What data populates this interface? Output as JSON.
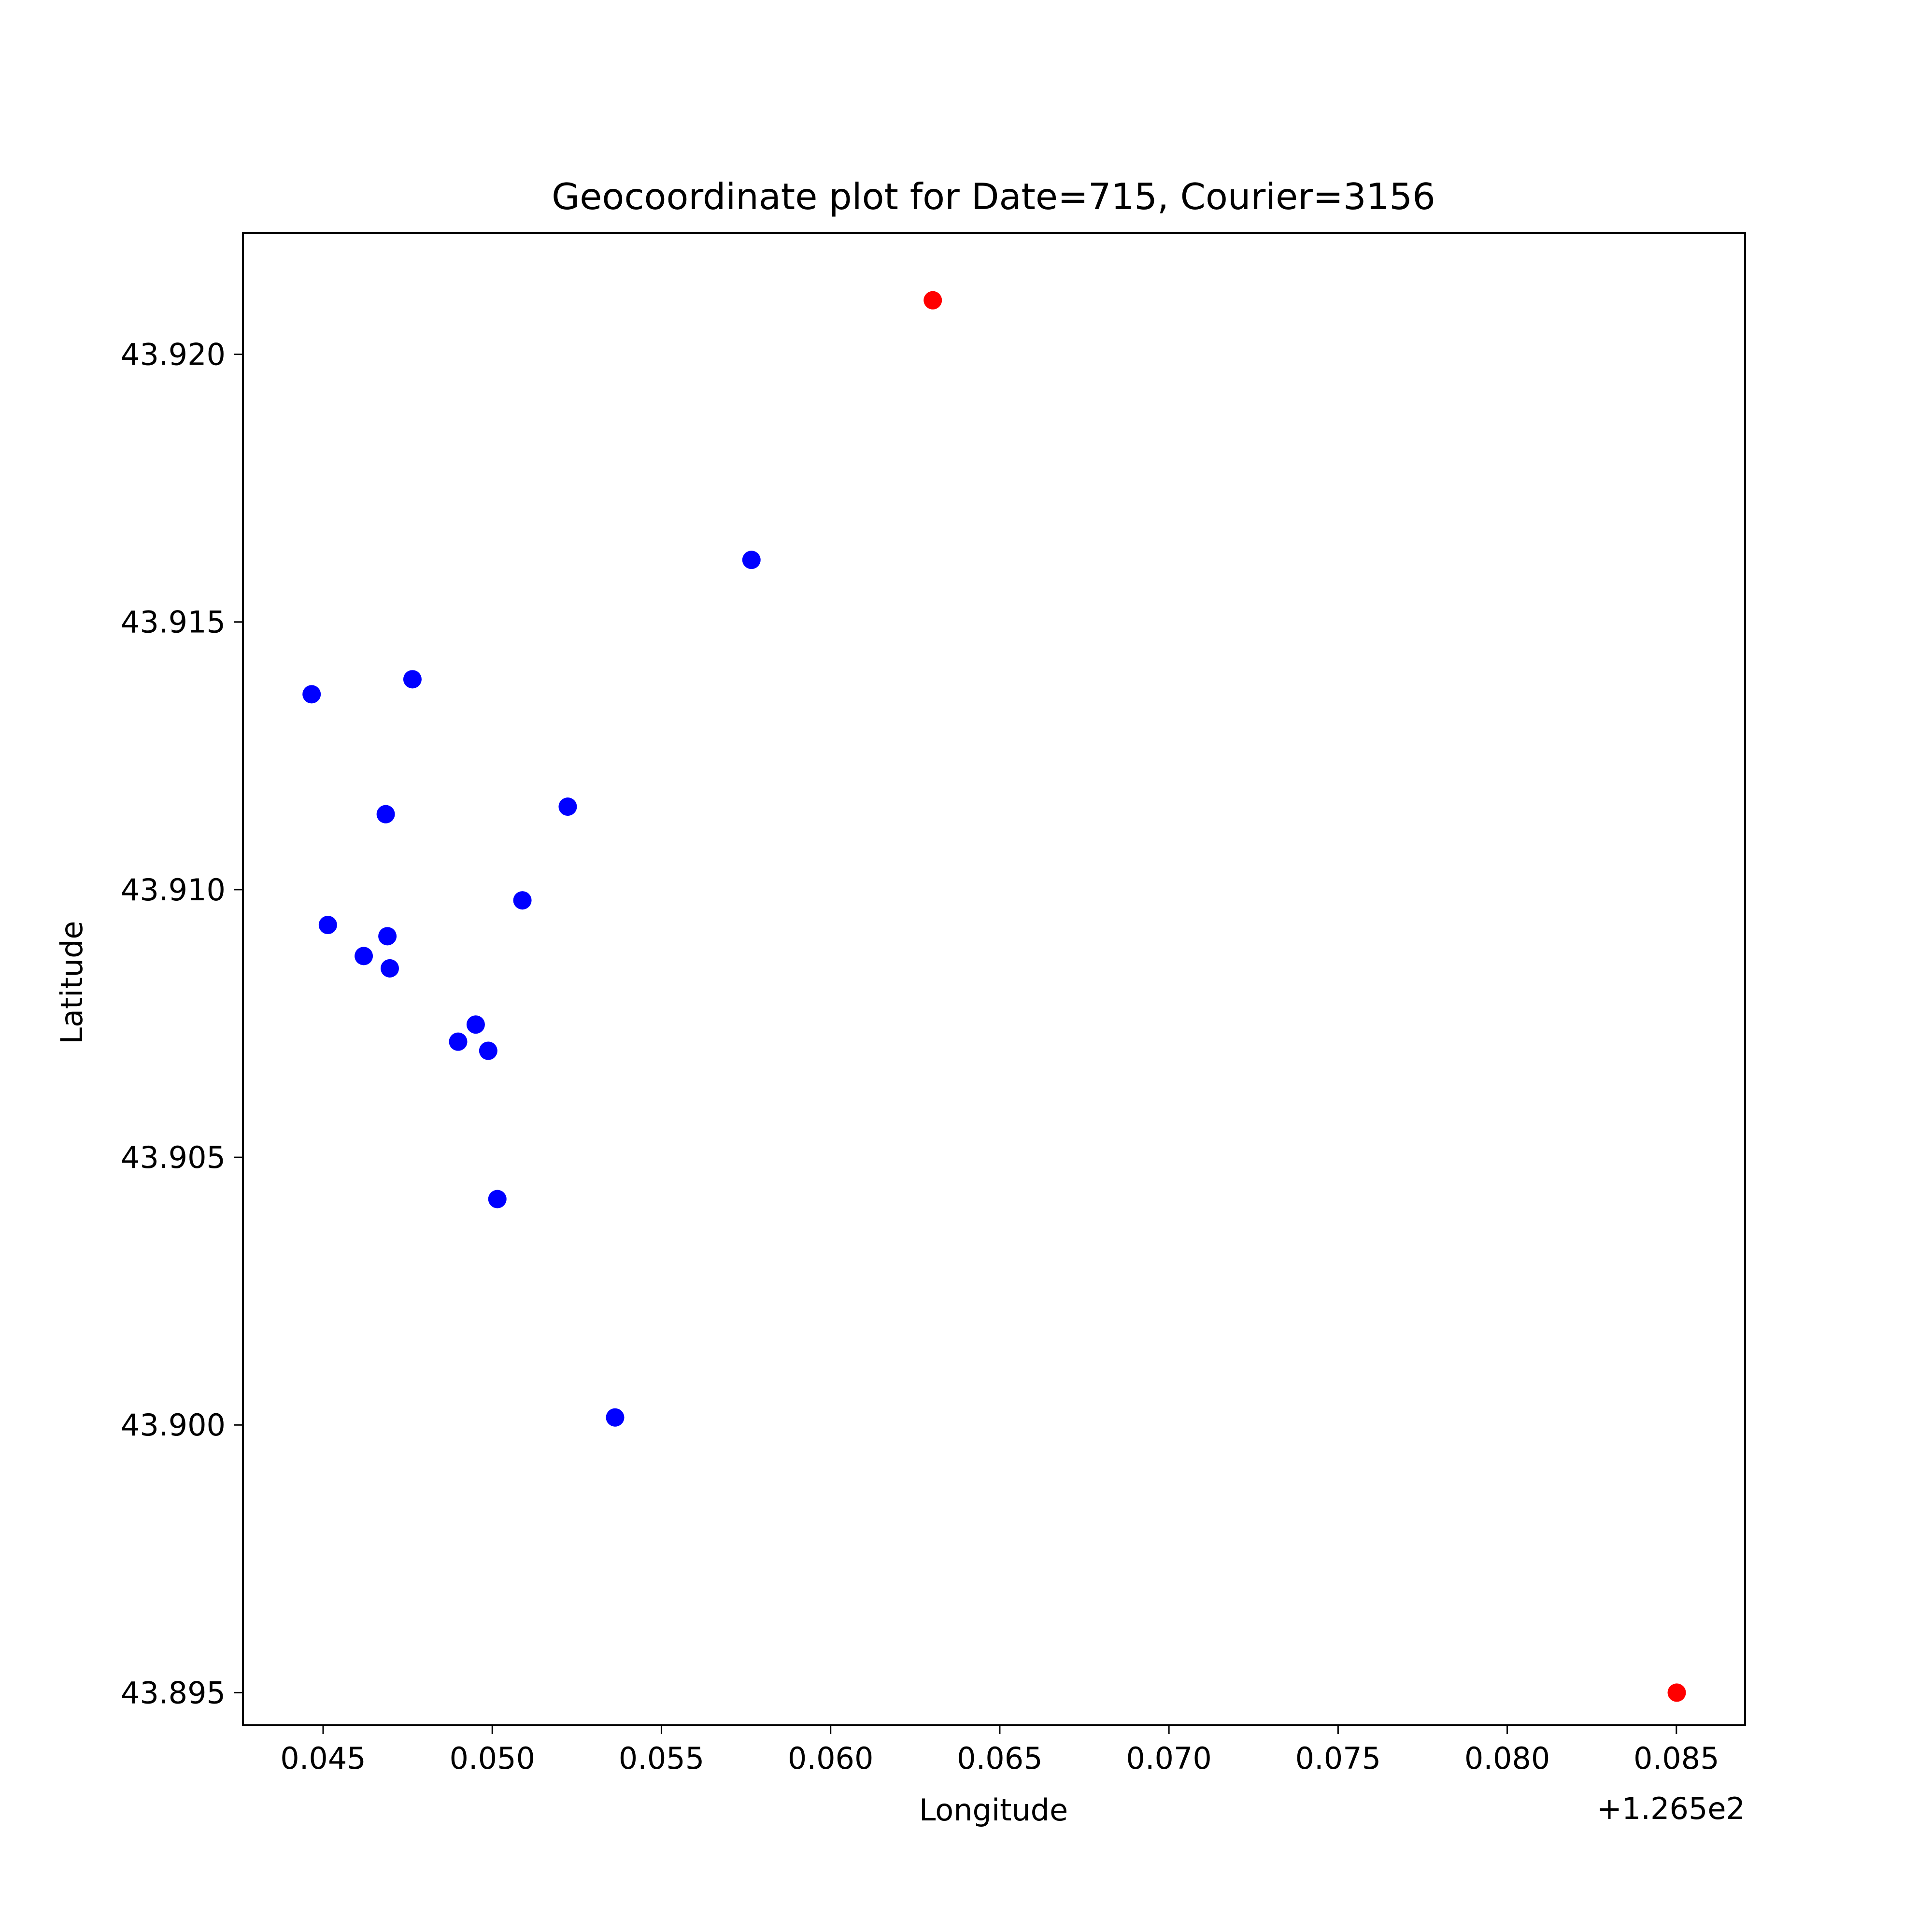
{
  "chart_data": {
    "type": "scatter",
    "title": "Geocoordinate plot for Date=715, Courier=3156",
    "xlabel": "Longitude",
    "ylabel": "Latitude",
    "x_offset_text": "+1.265e2",
    "x_offset": 126.5,
    "xlim": [
      126.54263,
      126.58703
    ],
    "ylim": [
      43.89439,
      43.92227
    ],
    "x_ticks": [
      126.545,
      126.55,
      126.555,
      126.56,
      126.565,
      126.57,
      126.575,
      126.58,
      126.585
    ],
    "x_tick_labels": [
      "0.045",
      "0.050",
      "0.055",
      "0.060",
      "0.065",
      "0.070",
      "0.075",
      "0.080",
      "0.085"
    ],
    "y_ticks": [
      43.895,
      43.9,
      43.905,
      43.91,
      43.915,
      43.92
    ],
    "y_tick_labels": [
      "43.895",
      "43.900",
      "43.905",
      "43.910",
      "43.915",
      "43.920"
    ],
    "grid": false,
    "series": [
      {
        "color": "#0000ff",
        "points": [
          {
            "x": 126.55766,
            "y": 43.91616
          },
          {
            "x": 126.54466,
            "y": 43.91365
          },
          {
            "x": 126.54764,
            "y": 43.91393
          },
          {
            "x": 126.54685,
            "y": 43.91141
          },
          {
            "x": 126.55223,
            "y": 43.91155
          },
          {
            "x": 126.55089,
            "y": 43.9098
          },
          {
            "x": 126.54514,
            "y": 43.90934
          },
          {
            "x": 126.5469,
            "y": 43.90913
          },
          {
            "x": 126.5462,
            "y": 43.90876
          },
          {
            "x": 126.54697,
            "y": 43.90853
          },
          {
            "x": 126.54951,
            "y": 43.90748
          },
          {
            "x": 126.54899,
            "y": 43.90716
          },
          {
            "x": 126.54988,
            "y": 43.90699
          },
          {
            "x": 126.55015,
            "y": 43.90422
          },
          {
            "x": 126.55363,
            "y": 43.90014
          }
        ]
      },
      {
        "color": "#ff0000",
        "points": [
          {
            "x": 126.56302,
            "y": 43.92101
          },
          {
            "x": 126.58501,
            "y": 43.895
          }
        ]
      }
    ]
  }
}
